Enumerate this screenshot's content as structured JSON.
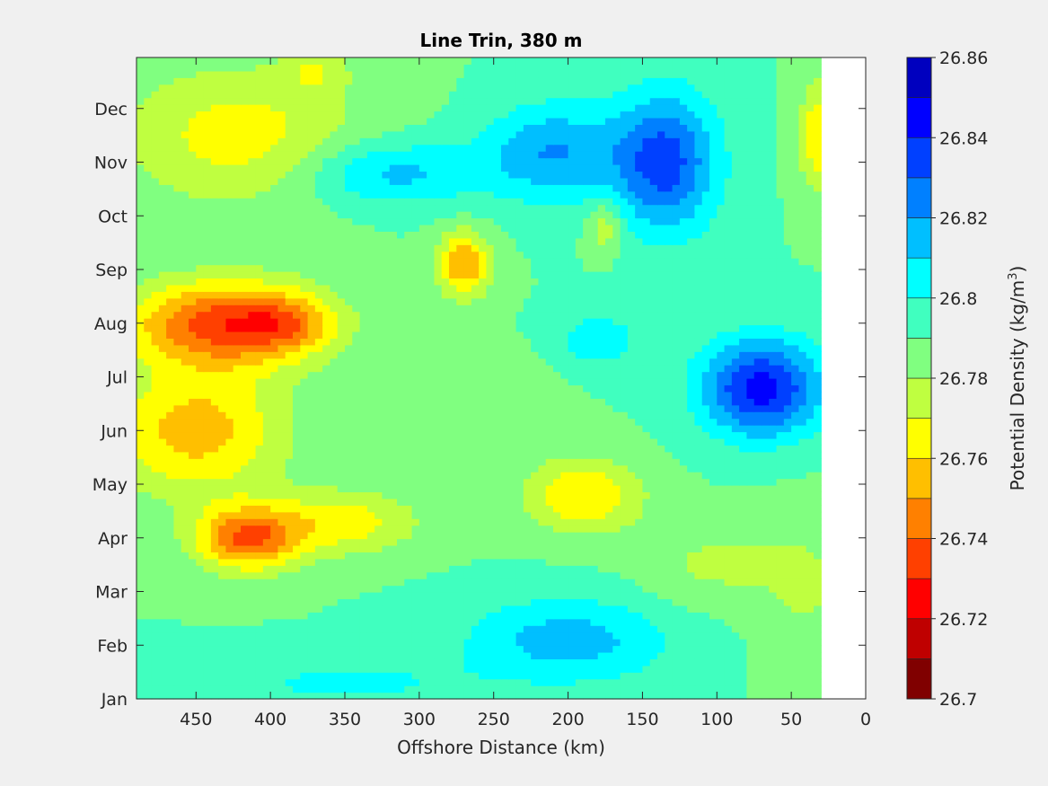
{
  "chart_data": {
    "type": "heatmap",
    "subtype": "filled-contour",
    "title": "Line Trin, 380 m",
    "xlabel": "Offshore Distance (km)",
    "x_reversed": true,
    "xlim": [
      0,
      490
    ],
    "x_ticks": [
      {
        "value": 450,
        "label": "450"
      },
      {
        "value": 400,
        "label": "400"
      },
      {
        "value": 350,
        "label": "350"
      },
      {
        "value": 300,
        "label": "300"
      },
      {
        "value": 250,
        "label": "250"
      },
      {
        "value": 200,
        "label": "200"
      },
      {
        "value": 150,
        "label": "150"
      },
      {
        "value": 100,
        "label": "100"
      },
      {
        "value": 50,
        "label": "50"
      },
      {
        "value": 0,
        "label": "0"
      }
    ],
    "y_ticks": [
      {
        "value": 1,
        "label": "Jan"
      },
      {
        "value": 2,
        "label": "Feb"
      },
      {
        "value": 3,
        "label": "Mar"
      },
      {
        "value": 4,
        "label": "Apr"
      },
      {
        "value": 5,
        "label": "May"
      },
      {
        "value": 6,
        "label": "Jun"
      },
      {
        "value": 7,
        "label": "Jul"
      },
      {
        "value": 8,
        "label": "Aug"
      },
      {
        "value": 9,
        "label": "Sep"
      },
      {
        "value": 10,
        "label": "Oct"
      },
      {
        "value": 11,
        "label": "Nov"
      },
      {
        "value": 12,
        "label": "Dec"
      }
    ],
    "ylim": [
      1,
      12.95
    ],
    "data_x_range": [
      30,
      490
    ],
    "colorbar": {
      "label": "Potential Density (kg/m",
      "label_superscript": "3",
      "label_suffix": ")",
      "range": [
        26.7,
        26.86
      ],
      "step": 0.01,
      "tick_labels": [
        "26.86",
        "26.84",
        "26.82",
        "26.8",
        "26.78",
        "26.76",
        "26.74",
        "26.72",
        "26.7"
      ],
      "colors": [
        "#800000",
        "#bf0000",
        "#ff0000",
        "#ff4000",
        "#ff8000",
        "#ffbf00",
        "#ffff00",
        "#bfff40",
        "#80ff80",
        "#40ffbf",
        "#00ffff",
        "#00bfff",
        "#0080ff",
        "#0040ff",
        "#0000ff",
        "#0000bf"
      ]
    },
    "field": {
      "base": 26.79,
      "features": [
        {
          "x": 430,
          "m": 8.0,
          "sx": 65,
          "sm": 0.8,
          "a": -0.055
        },
        {
          "x": 415,
          "m": 4.0,
          "sx": 35,
          "sm": 0.6,
          "a": -0.05
        },
        {
          "x": 390,
          "m": 8.0,
          "sx": 30,
          "sm": 0.5,
          "a": -0.02
        },
        {
          "x": 450,
          "m": 6.0,
          "sx": 60,
          "sm": 1.2,
          "a": -0.035
        },
        {
          "x": 350,
          "m": 4.3,
          "sx": 50,
          "sm": 0.6,
          "a": -0.025
        },
        {
          "x": 420,
          "m": 11.5,
          "sx": 80,
          "sm": 1.3,
          "a": -0.025
        },
        {
          "x": 370,
          "m": 12.7,
          "sx": 22,
          "sm": 0.4,
          "a": -0.015
        },
        {
          "x": 270,
          "m": 9.1,
          "sx": 18,
          "sm": 0.6,
          "a": -0.04
        },
        {
          "x": 190,
          "m": 4.8,
          "sx": 40,
          "sm": 0.7,
          "a": -0.03
        },
        {
          "x": 210,
          "m": 11.2,
          "sx": 45,
          "sm": 0.9,
          "a": 0.03
        },
        {
          "x": 135,
          "m": 11.0,
          "sx": 35,
          "sm": 1.3,
          "a": 0.045
        },
        {
          "x": 70,
          "m": 6.8,
          "sx": 40,
          "sm": 0.9,
          "a": 0.055
        },
        {
          "x": 180,
          "m": 7.7,
          "sx": 25,
          "sm": 0.45,
          "a": 0.02
        },
        {
          "x": 200,
          "m": 2.1,
          "sx": 70,
          "sm": 0.8,
          "a": 0.025
        },
        {
          "x": 320,
          "m": 10.8,
          "sx": 60,
          "sm": 0.6,
          "a": 0.025
        },
        {
          "x": 350,
          "m": 1.3,
          "sx": 90,
          "sm": 0.5,
          "a": 0.012
        },
        {
          "x": 30,
          "m": 11.5,
          "sx": 15,
          "sm": 1.0,
          "a": -0.03
        },
        {
          "x": 40,
          "m": 3.0,
          "sx": 30,
          "sm": 1.5,
          "a": -0.01
        },
        {
          "x": 100,
          "m": 3.5,
          "sx": 50,
          "sm": 0.8,
          "a": -0.012
        },
        {
          "x": 250,
          "m": 7.0,
          "sx": 35,
          "sm": 0.5,
          "a": -0.005
        },
        {
          "x": 175,
          "m": 9.8,
          "sx": 12,
          "sm": 0.5,
          "a": -0.02
        }
      ]
    }
  }
}
